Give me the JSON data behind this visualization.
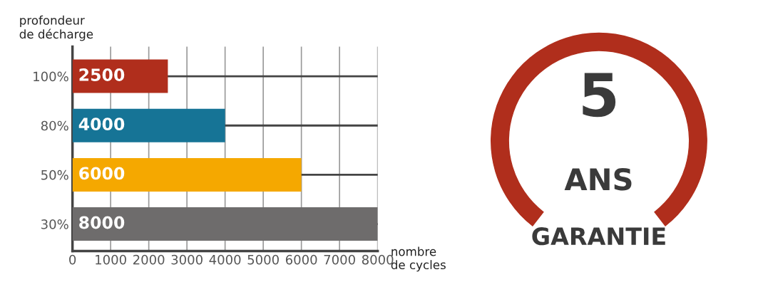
{
  "chart_data": {
    "type": "bar",
    "orientation": "horizontal",
    "categories": [
      "100%",
      "80%",
      "50%",
      "30%"
    ],
    "values": [
      2500,
      4000,
      6000,
      8000
    ],
    "colors": [
      "#b02e1c",
      "#167496",
      "#f5a800",
      "#6e6c6c"
    ],
    "xlim": [
      0,
      8000
    ],
    "xticks": [
      0,
      1000,
      2000,
      3000,
      4000,
      5000,
      6000,
      7000,
      8000
    ],
    "xlabel": "nombre\nde cycles",
    "ylabel": "profondeur\nde décharge",
    "data_labels": true,
    "grid": true,
    "annotations": [
      "5",
      "ANS",
      "GARANTIE"
    ]
  }
}
